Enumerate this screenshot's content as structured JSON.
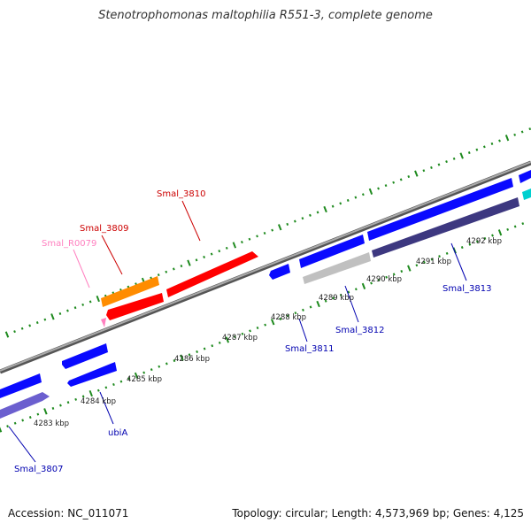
{
  "title": "Stenotrophomonas maltophilia R551-3, complete genome",
  "footer": {
    "accession": "Accession: NC_011071",
    "summary": "Topology: circular; Length: 4,573,969 bp; Genes: 4,125"
  },
  "colors": {
    "backbone": "#8c8c8c",
    "tick": "#1e8a1e",
    "cds": "#0a0aff",
    "cds_dark": "#3d3880",
    "cds_light": "#6b5fcf",
    "rrna": "#ff0000",
    "trna": "#ff8c00",
    "misc": "#ff80c0",
    "pseudo": "#c0c0c0",
    "other": "#00d0d0"
  },
  "tick_labels": [
    "4283 kbp",
    "4284 kbp",
    "4285 kbp",
    "4286 kbp",
    "4287 kbp",
    "4288 kbp",
    "4289 kbp",
    "4290 kbp",
    "4291 kbp",
    "4292 kbp"
  ],
  "gene_labels": [
    {
      "text": "Smal_3807",
      "color": "#0000b0"
    },
    {
      "text": "ubiA",
      "color": "#0000b0"
    },
    {
      "text": "Smal_3811",
      "color": "#0000b0"
    },
    {
      "text": "Smal_3812",
      "color": "#0000b0"
    },
    {
      "text": "Smal_3813",
      "color": "#0000b0"
    },
    {
      "text": "Smal_3809",
      "color": "#cc0000"
    },
    {
      "text": "Smal_3810",
      "color": "#cc0000"
    },
    {
      "text": "Smal_R0079",
      "color": "#ff80c0"
    }
  ]
}
